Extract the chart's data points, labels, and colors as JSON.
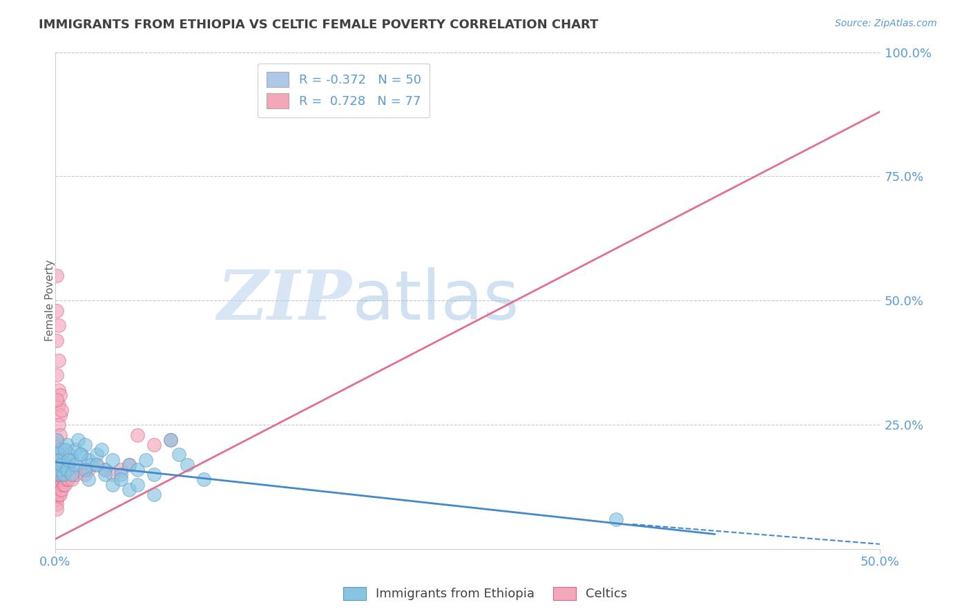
{
  "title": "IMMIGRANTS FROM ETHIOPIA VS CELTIC FEMALE POVERTY CORRELATION CHART",
  "source": "Source: ZipAtlas.com",
  "ylabel": "Female Poverty",
  "xlim": [
    0.0,
    0.5
  ],
  "ylim": [
    0.0,
    1.0
  ],
  "ytick_positions": [
    0.25,
    0.5,
    0.75,
    1.0
  ],
  "ytick_labels": [
    "25.0%",
    "50.0%",
    "75.0%",
    "100.0%"
  ],
  "xtick_positions": [
    0.0,
    0.5
  ],
  "xtick_labels": [
    "0.0%",
    "50.0%"
  ],
  "legend_entries": [
    {
      "label": "R = -0.372   N = 50",
      "color": "#aec6e8"
    },
    {
      "label": "R =  0.728   N = 77",
      "color": "#f4a7b9"
    }
  ],
  "legend_labels_bottom": [
    "Immigrants from Ethiopia",
    "Celtics"
  ],
  "watermark_zip": "ZIP",
  "watermark_atlas": "atlas",
  "blue_line": {
    "x0": 0.0,
    "y0": 0.175,
    "x1": 0.4,
    "y1": 0.03
  },
  "blue_dashed_line": {
    "x0": 0.35,
    "y0": 0.05,
    "x1": 0.5,
    "y1": 0.01
  },
  "pink_line": {
    "x0": 0.0,
    "y0": 0.02,
    "x1": 0.5,
    "y1": 0.88
  },
  "dot_color_blue": "#89c4e1",
  "dot_color_pink": "#f4a7b9",
  "dot_border_blue": "#5599cc",
  "dot_border_pink": "#d96090",
  "blue_dots": [
    [
      0.001,
      0.17
    ],
    [
      0.002,
      0.19
    ],
    [
      0.003,
      0.15
    ],
    [
      0.004,
      0.2
    ],
    [
      0.005,
      0.18
    ],
    [
      0.006,
      0.16
    ],
    [
      0.007,
      0.21
    ],
    [
      0.008,
      0.17
    ],
    [
      0.009,
      0.19
    ],
    [
      0.01,
      0.18
    ],
    [
      0.012,
      0.2
    ],
    [
      0.014,
      0.22
    ],
    [
      0.016,
      0.19
    ],
    [
      0.018,
      0.21
    ],
    [
      0.02,
      0.18
    ],
    [
      0.022,
      0.17
    ],
    [
      0.025,
      0.19
    ],
    [
      0.028,
      0.2
    ],
    [
      0.03,
      0.16
    ],
    [
      0.035,
      0.18
    ],
    [
      0.04,
      0.15
    ],
    [
      0.045,
      0.17
    ],
    [
      0.05,
      0.16
    ],
    [
      0.055,
      0.18
    ],
    [
      0.06,
      0.15
    ],
    [
      0.002,
      0.16
    ],
    [
      0.003,
      0.18
    ],
    [
      0.004,
      0.17
    ],
    [
      0.005,
      0.15
    ],
    [
      0.006,
      0.2
    ],
    [
      0.007,
      0.16
    ],
    [
      0.008,
      0.18
    ],
    [
      0.01,
      0.15
    ],
    [
      0.012,
      0.17
    ],
    [
      0.015,
      0.19
    ],
    [
      0.018,
      0.16
    ],
    [
      0.02,
      0.14
    ],
    [
      0.025,
      0.17
    ],
    [
      0.03,
      0.15
    ],
    [
      0.035,
      0.13
    ],
    [
      0.04,
      0.14
    ],
    [
      0.045,
      0.12
    ],
    [
      0.05,
      0.13
    ],
    [
      0.06,
      0.11
    ],
    [
      0.07,
      0.22
    ],
    [
      0.075,
      0.19
    ],
    [
      0.08,
      0.17
    ],
    [
      0.09,
      0.14
    ],
    [
      0.34,
      0.06
    ],
    [
      0.001,
      0.22
    ]
  ],
  "pink_dots": [
    [
      0.001,
      0.13
    ],
    [
      0.001,
      0.14
    ],
    [
      0.001,
      0.12
    ],
    [
      0.001,
      0.15
    ],
    [
      0.001,
      0.16
    ],
    [
      0.001,
      0.17
    ],
    [
      0.001,
      0.11
    ],
    [
      0.001,
      0.1
    ],
    [
      0.001,
      0.18
    ],
    [
      0.001,
      0.19
    ],
    [
      0.001,
      0.2
    ],
    [
      0.001,
      0.21
    ],
    [
      0.001,
      0.22
    ],
    [
      0.001,
      0.09
    ],
    [
      0.001,
      0.08
    ],
    [
      0.002,
      0.13
    ],
    [
      0.002,
      0.14
    ],
    [
      0.002,
      0.15
    ],
    [
      0.002,
      0.16
    ],
    [
      0.002,
      0.12
    ],
    [
      0.002,
      0.17
    ],
    [
      0.002,
      0.11
    ],
    [
      0.002,
      0.18
    ],
    [
      0.002,
      0.19
    ],
    [
      0.002,
      0.2
    ],
    [
      0.003,
      0.14
    ],
    [
      0.003,
      0.15
    ],
    [
      0.003,
      0.13
    ],
    [
      0.003,
      0.16
    ],
    [
      0.003,
      0.17
    ],
    [
      0.003,
      0.12
    ],
    [
      0.003,
      0.18
    ],
    [
      0.003,
      0.11
    ],
    [
      0.003,
      0.19
    ],
    [
      0.004,
      0.14
    ],
    [
      0.004,
      0.15
    ],
    [
      0.004,
      0.13
    ],
    [
      0.004,
      0.16
    ],
    [
      0.004,
      0.12
    ],
    [
      0.005,
      0.14
    ],
    [
      0.005,
      0.15
    ],
    [
      0.005,
      0.13
    ],
    [
      0.005,
      0.16
    ],
    [
      0.006,
      0.14
    ],
    [
      0.006,
      0.15
    ],
    [
      0.006,
      0.13
    ],
    [
      0.007,
      0.14
    ],
    [
      0.007,
      0.15
    ],
    [
      0.008,
      0.14
    ],
    [
      0.008,
      0.15
    ],
    [
      0.01,
      0.14
    ],
    [
      0.012,
      0.15
    ],
    [
      0.015,
      0.16
    ],
    [
      0.018,
      0.15
    ],
    [
      0.02,
      0.16
    ],
    [
      0.025,
      0.17
    ],
    [
      0.03,
      0.16
    ],
    [
      0.035,
      0.15
    ],
    [
      0.04,
      0.16
    ],
    [
      0.045,
      0.17
    ],
    [
      0.002,
      0.29
    ],
    [
      0.003,
      0.27
    ],
    [
      0.002,
      0.32
    ],
    [
      0.001,
      0.35
    ],
    [
      0.002,
      0.38
    ],
    [
      0.001,
      0.42
    ],
    [
      0.003,
      0.31
    ],
    [
      0.004,
      0.28
    ],
    [
      0.001,
      0.3
    ],
    [
      0.002,
      0.25
    ],
    [
      0.003,
      0.23
    ],
    [
      0.001,
      0.48
    ],
    [
      0.002,
      0.45
    ],
    [
      0.001,
      0.55
    ],
    [
      0.05,
      0.23
    ],
    [
      0.06,
      0.21
    ],
    [
      0.07,
      0.22
    ]
  ],
  "axis_label_color": "#5b9bd5",
  "grid_color": "#c8c8c8",
  "title_color": "#404040"
}
